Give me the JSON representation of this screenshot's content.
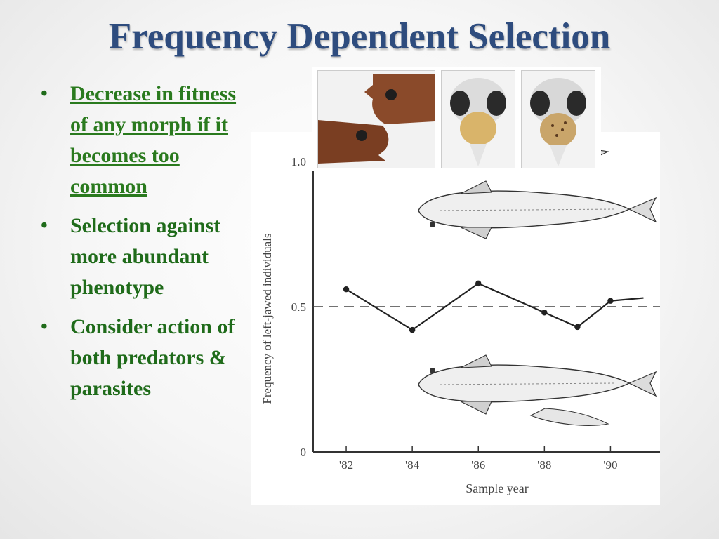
{
  "title": "Frequency Dependent Selection",
  "bullets": [
    "Decrease in fitness of any morph if it becomes too common",
    "Selection against more abundant phenotype",
    "Consider action of both predators & parasites"
  ],
  "colors": {
    "title": "#2e4c7e",
    "bullet_text": "#1f6b1a"
  },
  "chart_data": {
    "type": "line",
    "ylabel": "Frequency of left-jawed individuals",
    "xlabel": "Sample year",
    "ylim": [
      0,
      1.0
    ],
    "yticks": [
      "0",
      "0.5",
      "1.0"
    ],
    "xticks": [
      "'82",
      "'84",
      "'86",
      "'88",
      "'90"
    ],
    "reference_line": 0.5,
    "series": [
      {
        "x": [
          1982,
          1984,
          1986,
          1988,
          1989,
          1990,
          1991
        ],
        "values": [
          0.56,
          0.42,
          0.58,
          0.48,
          0.43,
          0.52,
          0.53
        ]
      }
    ]
  }
}
